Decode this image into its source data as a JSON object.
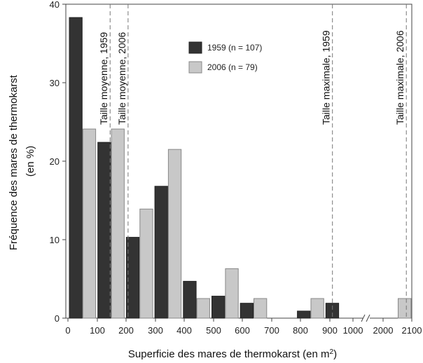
{
  "chart_data": {
    "type": "bar",
    "xlabel_prefix": "Superficie des mares de thermokarst (en m",
    "xlabel_sup": "2",
    "xlabel_suffix": ")",
    "ylabel_lines": [
      "Fréquence des mares de thermokarst",
      "(en %)"
    ],
    "ylim": [
      0,
      40
    ],
    "y_ticks": [
      0,
      10,
      20,
      30,
      40
    ],
    "x_ticks": [
      "0",
      "100",
      "200",
      "300",
      "400",
      "500",
      "600",
      "700",
      "800",
      "900",
      "1000",
      "2000",
      "2100"
    ],
    "categories": [
      "0-100",
      "100-200",
      "200-300",
      "300-400",
      "400-500",
      "500-600",
      "600-700",
      "700-800",
      "800-900",
      "900-1000",
      "2000-2100"
    ],
    "series": [
      {
        "name": "1959 (n = 107)",
        "color": "#333333",
        "values": [
          38.3,
          22.4,
          10.3,
          16.8,
          4.7,
          2.8,
          1.9,
          0,
          0.9,
          1.9,
          0
        ]
      },
      {
        "name": "2006 (n = 79)",
        "color": "#c8c8c8",
        "values": [
          24.1,
          24.1,
          13.9,
          21.5,
          2.5,
          6.3,
          2.5,
          0,
          2.5,
          0,
          2.5
        ]
      }
    ],
    "reference_lines": [
      {
        "label": "Taille moyenne, 1959",
        "x": 148
      },
      {
        "label": "Taille moyenne, 2006",
        "x": 211
      },
      {
        "label": "Taille maximale, 1959",
        "x": 928
      },
      {
        "label": "Taille maximale, 2006",
        "x": 2081
      }
    ],
    "axis_break_between": [
      "1000",
      "2000"
    ],
    "legend_position": "top-center",
    "grid": false
  }
}
